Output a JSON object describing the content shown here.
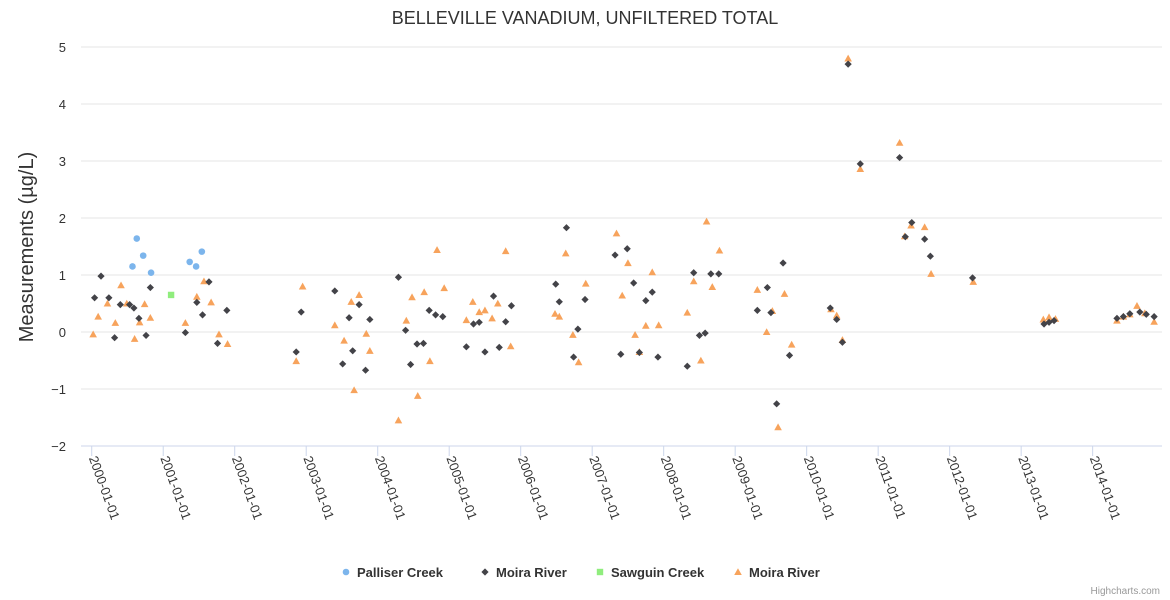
{
  "chart_data": {
    "type": "scatter",
    "title": "BELLEVILLE VANADIUM, UNFILTERED TOTAL",
    "ylabel": "Measurements (µg/L)",
    "xlabel": "",
    "ylim": [
      -2,
      5
    ],
    "yticks": [
      -2,
      -1,
      0,
      1,
      2,
      3,
      4,
      5
    ],
    "xlim": [
      1999.85,
      2014.97
    ],
    "xticks": [
      {
        "value": 2000.0,
        "label": "2000-01-01"
      },
      {
        "value": 2001.0,
        "label": "2001-01-01"
      },
      {
        "value": 2002.0,
        "label": "2002-01-01"
      },
      {
        "value": 2003.0,
        "label": "2003-01-01"
      },
      {
        "value": 2004.0,
        "label": "2004-01-01"
      },
      {
        "value": 2005.0,
        "label": "2005-01-01"
      },
      {
        "value": 2006.0,
        "label": "2006-01-01"
      },
      {
        "value": 2007.0,
        "label": "2007-01-01"
      },
      {
        "value": 2008.0,
        "label": "2008-01-01"
      },
      {
        "value": 2009.0,
        "label": "2009-01-01"
      },
      {
        "value": 2010.0,
        "label": "2010-01-01"
      },
      {
        "value": 2011.0,
        "label": "2011-01-01"
      },
      {
        "value": 2012.0,
        "label": "2012-01-01"
      },
      {
        "value": 2013.0,
        "label": "2013-01-01"
      },
      {
        "value": 2014.0,
        "label": "2014-01-01"
      }
    ],
    "legend_position": "bottom-center",
    "series": [
      {
        "name": "Palliser Creek",
        "marker": "circle",
        "color": "#7cb5ec",
        "points": [
          [
            2000.57,
            1.15
          ],
          [
            2000.63,
            1.64
          ],
          [
            2000.72,
            1.34
          ],
          [
            2000.83,
            1.04
          ],
          [
            2001.37,
            1.23
          ],
          [
            2001.46,
            1.15
          ],
          [
            2001.54,
            1.41
          ]
        ]
      },
      {
        "name": "Moira River",
        "marker": "diamond",
        "color": "#434348",
        "points": [
          [
            2000.04,
            0.6
          ],
          [
            2000.13,
            0.98
          ],
          [
            2000.24,
            0.6
          ],
          [
            2000.32,
            -0.1
          ],
          [
            2000.4,
            0.48
          ],
          [
            2000.53,
            0.48
          ],
          [
            2000.59,
            0.42
          ],
          [
            2000.66,
            0.24
          ],
          [
            2000.76,
            -0.06
          ],
          [
            2000.82,
            0.78
          ],
          [
            2001.31,
            -0.01
          ],
          [
            2001.47,
            0.52
          ],
          [
            2001.55,
            0.3
          ],
          [
            2001.64,
            0.88
          ],
          [
            2001.76,
            -0.2
          ],
          [
            2001.89,
            0.38
          ],
          [
            2002.86,
            -0.35
          ],
          [
            2002.93,
            0.35
          ],
          [
            2003.4,
            0.72
          ],
          [
            2003.51,
            -0.56
          ],
          [
            2003.6,
            0.25
          ],
          [
            2003.65,
            -0.33
          ],
          [
            2003.74,
            0.48
          ],
          [
            2003.83,
            -0.67
          ],
          [
            2003.89,
            0.22
          ],
          [
            2004.29,
            0.96
          ],
          [
            2004.39,
            0.03
          ],
          [
            2004.46,
            -0.57
          ],
          [
            2004.55,
            -0.21
          ],
          [
            2004.64,
            -0.2
          ],
          [
            2004.72,
            0.38
          ],
          [
            2004.81,
            0.3
          ],
          [
            2004.91,
            0.27
          ],
          [
            2005.24,
            -0.26
          ],
          [
            2005.34,
            0.14
          ],
          [
            2005.42,
            0.17
          ],
          [
            2005.5,
            -0.35
          ],
          [
            2005.62,
            0.63
          ],
          [
            2005.7,
            -0.27
          ],
          [
            2005.79,
            0.18
          ],
          [
            2005.87,
            0.46
          ],
          [
            2006.49,
            0.84
          ],
          [
            2006.54,
            0.53
          ],
          [
            2006.64,
            1.83
          ],
          [
            2006.74,
            -0.44
          ],
          [
            2006.8,
            0.05
          ],
          [
            2006.9,
            0.57
          ],
          [
            2007.32,
            1.35
          ],
          [
            2007.4,
            -0.39
          ],
          [
            2007.49,
            1.46
          ],
          [
            2007.58,
            0.86
          ],
          [
            2007.66,
            -0.36
          ],
          [
            2007.75,
            0.55
          ],
          [
            2007.84,
            0.7
          ],
          [
            2007.92,
            -0.44
          ],
          [
            2008.33,
            -0.6
          ],
          [
            2008.42,
            1.04
          ],
          [
            2008.5,
            -0.06
          ],
          [
            2008.58,
            -0.02
          ],
          [
            2008.66,
            1.02
          ],
          [
            2008.77,
            1.02
          ],
          [
            2009.31,
            0.38
          ],
          [
            2009.45,
            0.78
          ],
          [
            2009.5,
            0.34
          ],
          [
            2009.58,
            -1.26
          ],
          [
            2009.67,
            1.21
          ],
          [
            2009.76,
            -0.41
          ],
          [
            2010.33,
            0.42
          ],
          [
            2010.42,
            0.22
          ],
          [
            2010.5,
            -0.18
          ],
          [
            2010.58,
            4.7
          ],
          [
            2010.75,
            2.95
          ],
          [
            2011.3,
            3.06
          ],
          [
            2011.38,
            1.67
          ],
          [
            2011.47,
            1.92
          ],
          [
            2011.65,
            1.63
          ],
          [
            2011.73,
            1.33
          ],
          [
            2012.32,
            0.95
          ],
          [
            2013.32,
            0.14
          ],
          [
            2013.39,
            0.17
          ],
          [
            2013.46,
            0.2
          ],
          [
            2014.34,
            0.24
          ],
          [
            2014.43,
            0.27
          ],
          [
            2014.52,
            0.32
          ],
          [
            2014.66,
            0.35
          ],
          [
            2014.75,
            0.31
          ],
          [
            2014.86,
            0.27
          ]
        ]
      },
      {
        "name": "Sawguin Creek",
        "marker": "square",
        "color": "#90ed7d",
        "points": [
          [
            2001.11,
            0.65
          ]
        ]
      },
      {
        "name": "Moira River",
        "marker": "triangle",
        "color": "#f7a35c",
        "points": [
          [
            2000.02,
            -0.04
          ],
          [
            2000.09,
            0.27
          ],
          [
            2000.22,
            0.5
          ],
          [
            2000.33,
            0.16
          ],
          [
            2000.41,
            0.82
          ],
          [
            2000.49,
            0.5
          ],
          [
            2000.6,
            -0.12
          ],
          [
            2000.67,
            0.17
          ],
          [
            2000.74,
            0.49
          ],
          [
            2000.82,
            0.25
          ],
          [
            2001.31,
            0.16
          ],
          [
            2001.47,
            0.62
          ],
          [
            2001.57,
            0.89
          ],
          [
            2001.67,
            0.52
          ],
          [
            2001.78,
            -0.04
          ],
          [
            2001.9,
            -0.21
          ],
          [
            2002.86,
            -0.51
          ],
          [
            2002.95,
            0.8
          ],
          [
            2003.4,
            0.12
          ],
          [
            2003.53,
            -0.15
          ],
          [
            2003.63,
            0.53
          ],
          [
            2003.67,
            -1.02
          ],
          [
            2003.74,
            0.65
          ],
          [
            2003.84,
            -0.03
          ],
          [
            2003.89,
            -0.33
          ],
          [
            2004.29,
            -1.55
          ],
          [
            2004.4,
            0.2
          ],
          [
            2004.48,
            0.61
          ],
          [
            2004.56,
            -1.12
          ],
          [
            2004.65,
            0.7
          ],
          [
            2004.73,
            -0.51
          ],
          [
            2004.83,
            1.44
          ],
          [
            2004.93,
            0.77
          ],
          [
            2005.24,
            0.21
          ],
          [
            2005.33,
            0.53
          ],
          [
            2005.42,
            0.35
          ],
          [
            2005.5,
            0.38
          ],
          [
            2005.6,
            0.24
          ],
          [
            2005.68,
            0.5
          ],
          [
            2005.79,
            1.42
          ],
          [
            2005.86,
            -0.25
          ],
          [
            2006.48,
            0.32
          ],
          [
            2006.54,
            0.27
          ],
          [
            2006.63,
            1.38
          ],
          [
            2006.73,
            -0.05
          ],
          [
            2006.81,
            -0.53
          ],
          [
            2006.91,
            0.85
          ],
          [
            2007.34,
            1.73
          ],
          [
            2007.42,
            0.64
          ],
          [
            2007.5,
            1.21
          ],
          [
            2007.6,
            -0.05
          ],
          [
            2007.66,
            -0.35
          ],
          [
            2007.75,
            0.11
          ],
          [
            2007.84,
            1.05
          ],
          [
            2007.93,
            0.12
          ],
          [
            2008.33,
            0.34
          ],
          [
            2008.42,
            0.89
          ],
          [
            2008.52,
            -0.5
          ],
          [
            2008.6,
            1.94
          ],
          [
            2008.68,
            0.79
          ],
          [
            2008.78,
            1.43
          ],
          [
            2009.31,
            0.74
          ],
          [
            2009.44,
            0.0
          ],
          [
            2009.52,
            0.37
          ],
          [
            2009.6,
            -1.67
          ],
          [
            2009.69,
            0.67
          ],
          [
            2009.79,
            -0.22
          ],
          [
            2010.34,
            0.4
          ],
          [
            2010.42,
            0.29
          ],
          [
            2010.5,
            -0.14
          ],
          [
            2010.58,
            4.8
          ],
          [
            2010.75,
            2.86
          ],
          [
            2011.3,
            3.32
          ],
          [
            2011.37,
            1.68
          ],
          [
            2011.46,
            1.87
          ],
          [
            2011.65,
            1.84
          ],
          [
            2011.74,
            1.02
          ],
          [
            2012.33,
            0.88
          ],
          [
            2013.31,
            0.22
          ],
          [
            2013.39,
            0.26
          ],
          [
            2013.48,
            0.23
          ],
          [
            2014.34,
            0.2
          ],
          [
            2014.43,
            0.27
          ],
          [
            2014.52,
            0.31
          ],
          [
            2014.62,
            0.46
          ],
          [
            2014.73,
            0.33
          ],
          [
            2014.86,
            0.18
          ]
        ]
      }
    ],
    "credits": "Highcharts.com"
  }
}
